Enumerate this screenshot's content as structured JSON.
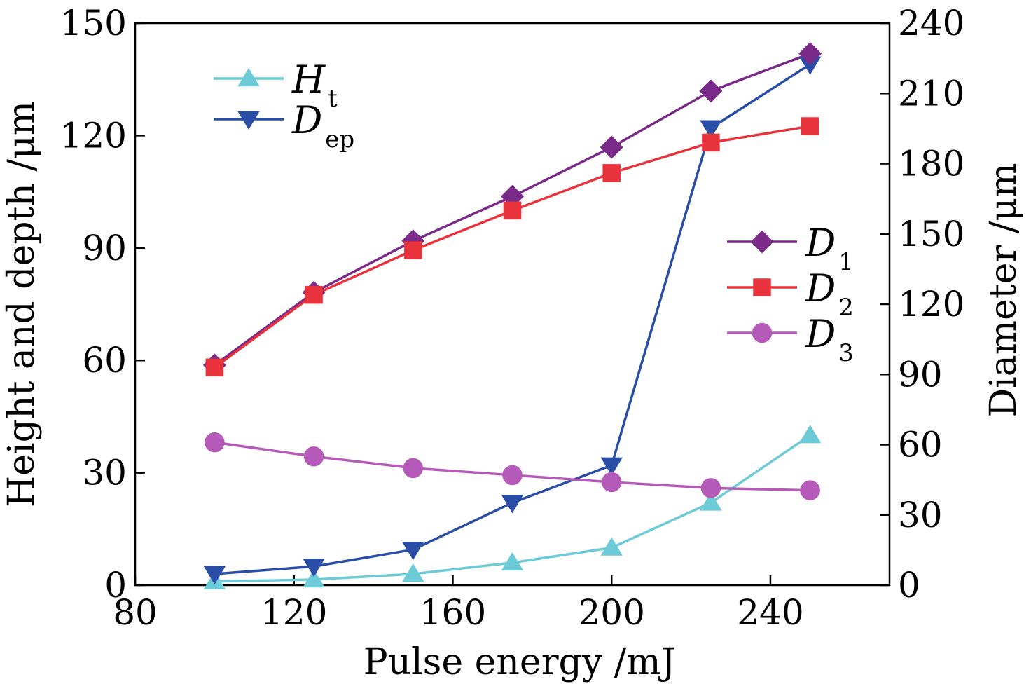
{
  "chart_data": {
    "type": "line",
    "x": [
      100,
      125,
      150,
      175,
      200,
      225,
      250
    ],
    "xlabel": "Pulse energy /mJ",
    "ylabel_left": "Height and depth /μm",
    "ylabel_right": "Diameter /μm",
    "xlim": [
      80,
      270
    ],
    "ylim_left": [
      0,
      150
    ],
    "ylim_right": [
      0,
      240
    ],
    "x_ticks": [
      80,
      120,
      160,
      200,
      240
    ],
    "y_ticks_left": [
      0,
      30,
      60,
      90,
      120,
      150
    ],
    "y_ticks_right": [
      0,
      30,
      60,
      90,
      120,
      150,
      180,
      210,
      240
    ],
    "series": [
      {
        "key": "Ht",
        "name": "H",
        "sub": "t",
        "axis": "left",
        "color": "#6ccbd6",
        "marker": "triangle-up",
        "values": [
          1,
          1.5,
          3,
          6,
          10,
          22,
          40
        ]
      },
      {
        "key": "Dep",
        "name": "D",
        "sub": "ep",
        "axis": "left",
        "color": "#2a4ea6",
        "marker": "triangle-down",
        "values": [
          3,
          5,
          9.5,
          22,
          32,
          122,
          139
        ]
      },
      {
        "key": "D1",
        "name": "D",
        "sub": "1",
        "axis": "right",
        "color": "#7a2a88",
        "marker": "diamond",
        "values": [
          94,
          125,
          147,
          166,
          187,
          211,
          227
        ]
      },
      {
        "key": "D2",
        "name": "D",
        "sub": "2",
        "axis": "right",
        "color": "#e8323c",
        "marker": "square",
        "values": [
          93,
          124,
          143,
          160,
          176,
          189,
          196
        ]
      },
      {
        "key": "D3",
        "name": "D",
        "sub": "3",
        "axis": "right",
        "color": "#b55ab8",
        "marker": "circle",
        "values": [
          61,
          55,
          50,
          47,
          44,
          41.5,
          40.5
        ]
      }
    ],
    "legends": [
      {
        "placement": "top-left",
        "items": [
          "Ht",
          "Dep"
        ]
      },
      {
        "placement": "right-middle",
        "items": [
          "D1",
          "D2",
          "D3"
        ]
      }
    ]
  }
}
